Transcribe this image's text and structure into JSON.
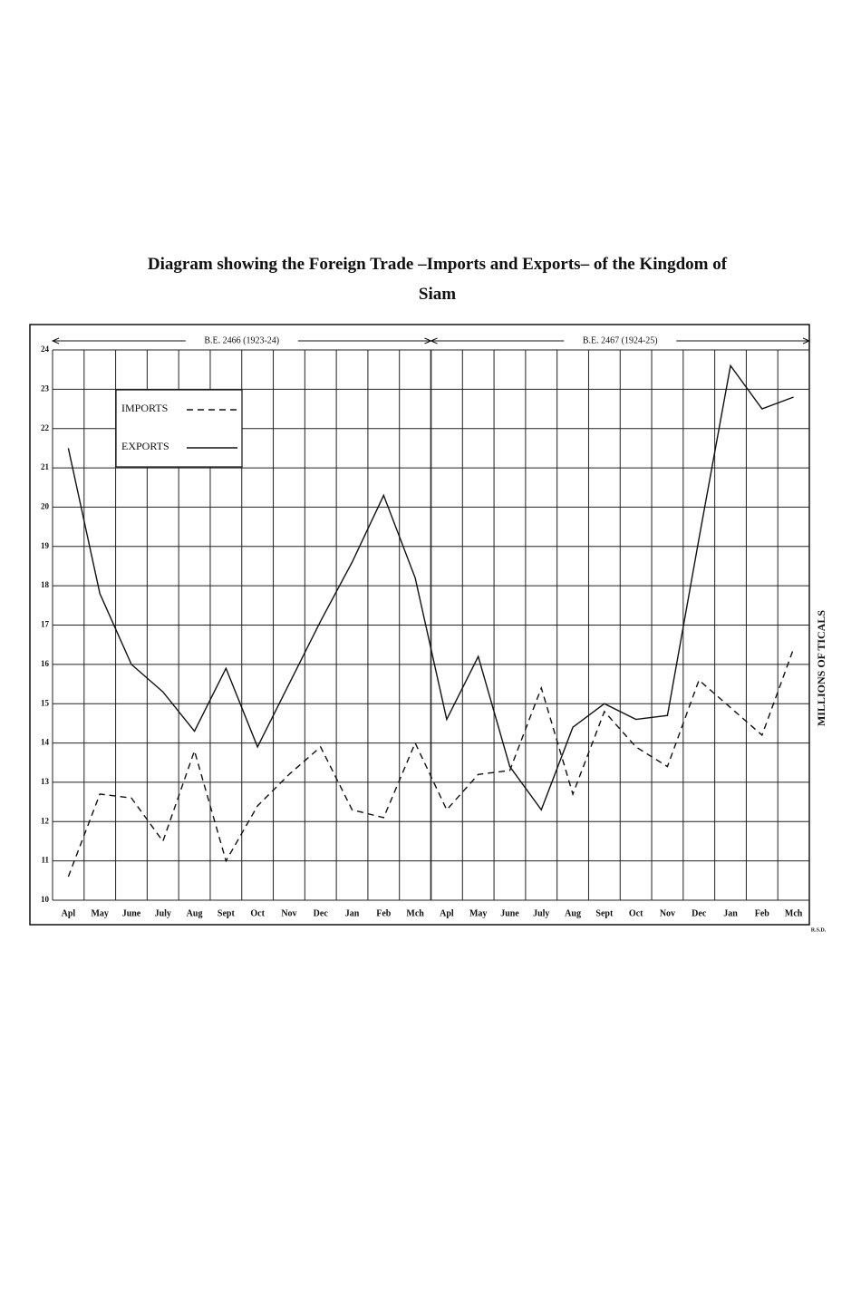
{
  "chart_data": {
    "type": "line",
    "title": "Diagram showing the Foreign Trade –Imports and Exports– of the Kingdom of Siam",
    "periods": [
      "B.E. 2466 (1923-24)",
      "B.E. 2467 (1924-25)"
    ],
    "y_label": "MILLIONS OF TICALS",
    "signature": "R.S.D.",
    "categories": [
      "Apl",
      "May",
      "June",
      "July",
      "Aug",
      "Sept",
      "Oct",
      "Nov",
      "Dec",
      "Jan",
      "Feb",
      "Mch",
      "Apl",
      "May",
      "June",
      "July",
      "Aug",
      "Sept",
      "Oct",
      "Nov",
      "Dec",
      "Jan",
      "Feb",
      "Mch"
    ],
    "series": [
      {
        "name": "IMPORTS",
        "color": "#111111",
        "line_style": "dashed",
        "values": [
          10.6,
          12.7,
          12.6,
          11.5,
          13.8,
          11.0,
          12.4,
          13.2,
          13.9,
          12.3,
          12.1,
          14.0,
          12.3,
          13.2,
          13.3,
          15.4,
          12.7,
          14.8,
          13.9,
          13.4,
          15.6,
          14.9,
          14.2,
          16.4
        ]
      },
      {
        "name": "EXPORTS",
        "color": "#111111",
        "line_style": "solid",
        "values": [
          21.5,
          17.8,
          16.0,
          15.3,
          14.3,
          15.9,
          13.9,
          15.5,
          17.1,
          18.6,
          20.3,
          18.2,
          14.6,
          16.2,
          13.4,
          12.3,
          14.4,
          15.0,
          14.6,
          14.7,
          19.2,
          23.6,
          22.5,
          22.8
        ]
      }
    ],
    "ylim": [
      10,
      24
    ],
    "yticks": [
      10,
      11,
      12,
      13,
      14,
      15,
      16,
      17,
      18,
      19,
      20,
      21,
      22,
      23,
      24
    ],
    "grid": true
  }
}
